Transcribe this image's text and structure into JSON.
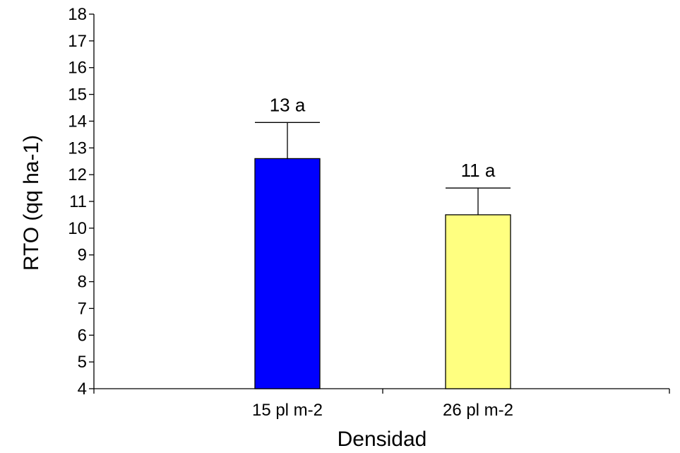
{
  "chart_data": {
    "type": "bar",
    "xlabel": "Densidad",
    "ylabel": "RTO (qq ha-1)",
    "ylim": [
      4,
      18
    ],
    "yticks": [
      4,
      5,
      6,
      7,
      8,
      9,
      10,
      11,
      12,
      13,
      14,
      15,
      16,
      17,
      18
    ],
    "categories": [
      "15 pl m-2",
      "26 pl m-2"
    ],
    "values": [
      12.6,
      10.5
    ],
    "error_upper": [
      13.95,
      11.5
    ],
    "annotations": [
      "13 a",
      "11 a"
    ],
    "colors": {
      "bars": [
        "#0000FF",
        "#FFFF80"
      ],
      "outline": "#000000",
      "axis": "#000000"
    },
    "grid": false,
    "legend": "none"
  }
}
